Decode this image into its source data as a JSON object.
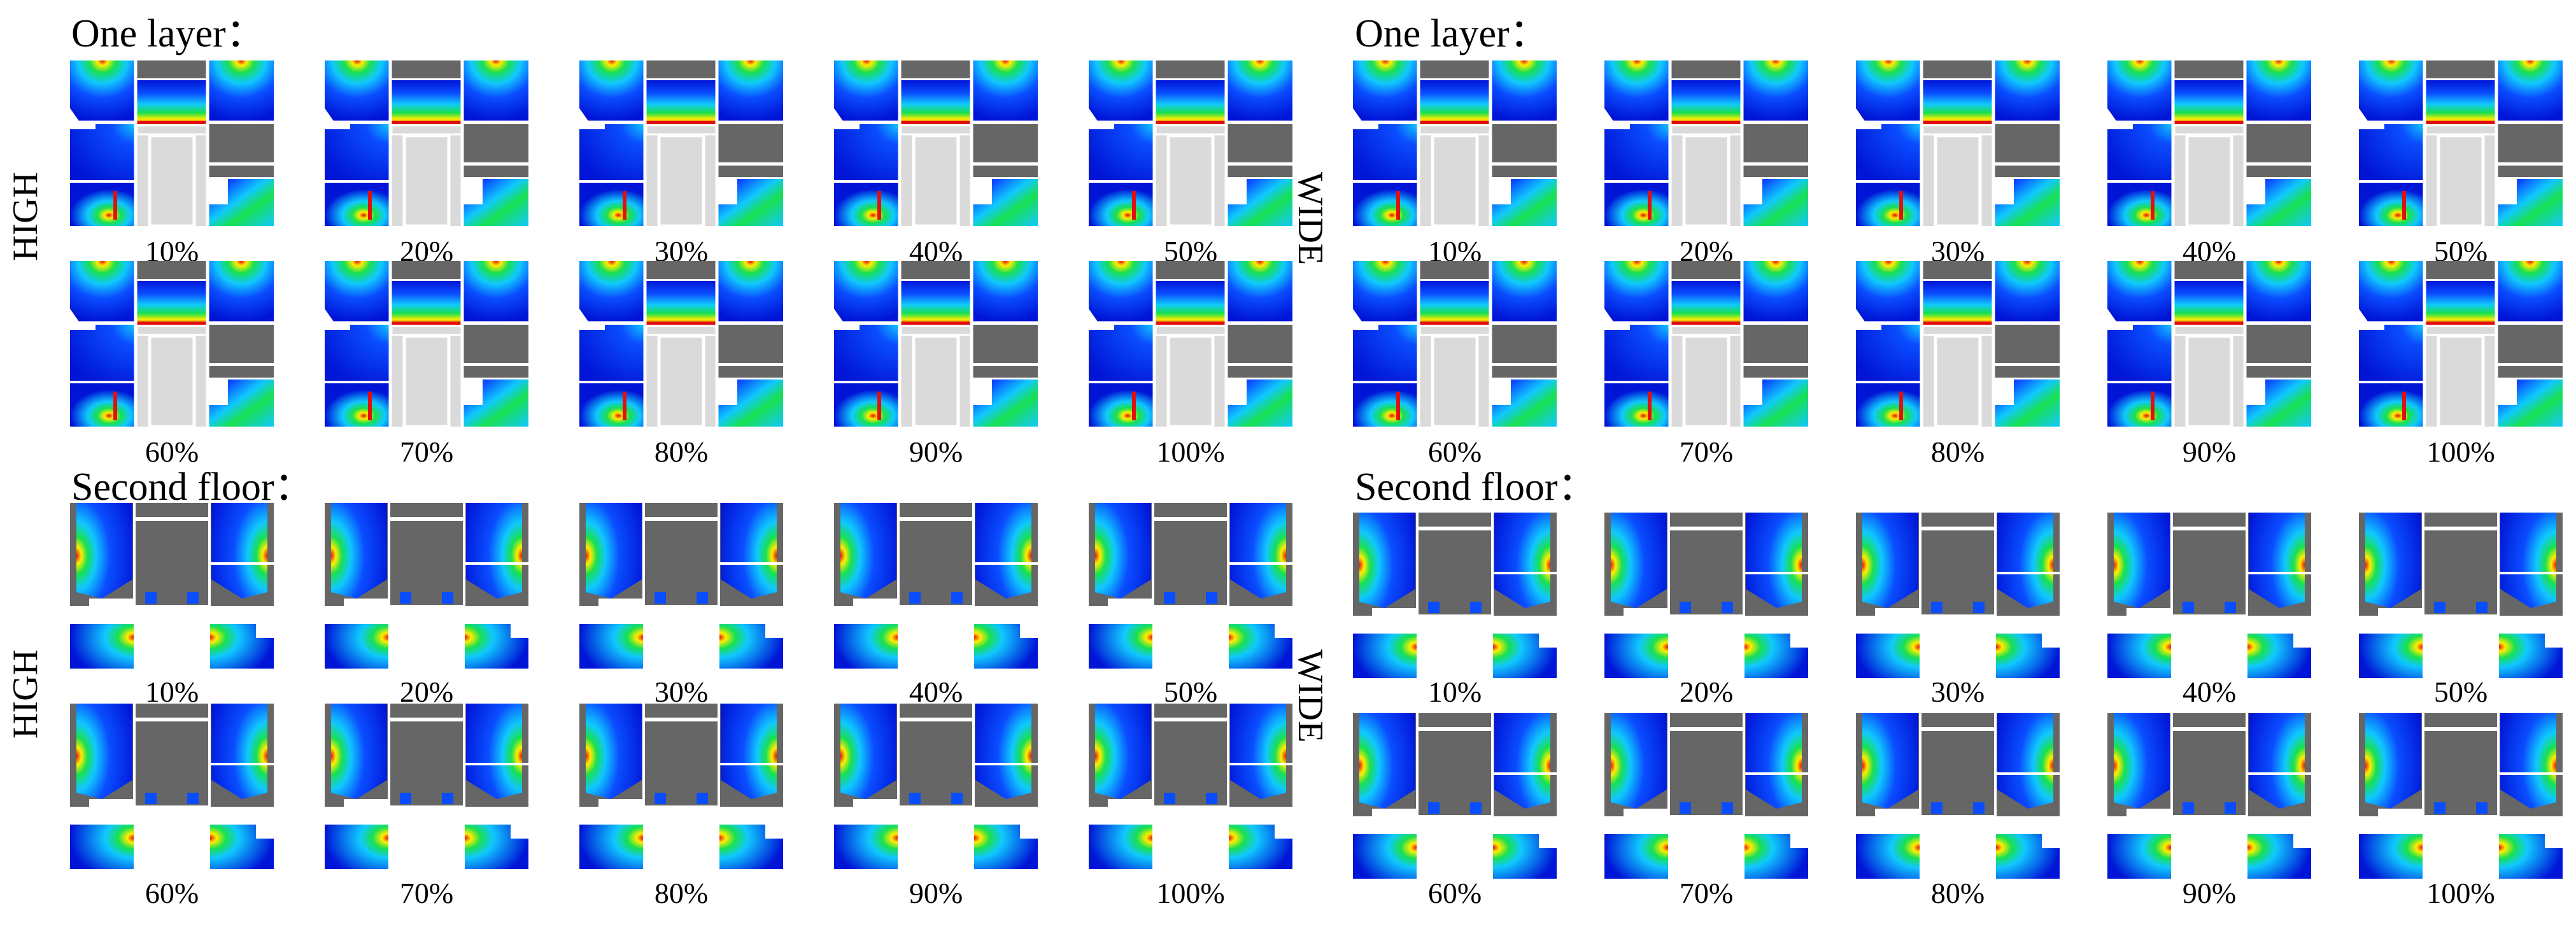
{
  "colors": {
    "deep_blue": "#0015d6",
    "blue": "#0a4dff",
    "cyan": "#10c8ff",
    "green": "#18e050",
    "yellow": "#ffee00",
    "red": "#e01010",
    "wall_grey": "#666666",
    "light_grey": "#dadada",
    "divider": "#ffffff"
  },
  "panels": [
    {
      "title": "One layer：",
      "side_label": "HIGH",
      "layout": "one-layer",
      "rows": [
        [
          "10%",
          "20%",
          "30%",
          "40%",
          "50%"
        ],
        [
          "60%",
          "70%",
          "80%",
          "90%",
          "100%"
        ]
      ]
    },
    {
      "title": "One layer：",
      "side_label": "WIDE",
      "layout": "one-layer",
      "rows": [
        [
          "10%",
          "20%",
          "30%",
          "40%",
          "50%"
        ],
        [
          "60%",
          "70%",
          "80%",
          "90%",
          "100%"
        ]
      ]
    },
    {
      "title": "Second floor：",
      "side_label": "HIGH",
      "layout": "second-floor",
      "rows": [
        [
          "10%",
          "20%",
          "30%",
          "40%",
          "50%"
        ],
        [
          "60%",
          "70%",
          "80%",
          "90%",
          "100%"
        ]
      ]
    },
    {
      "title": "Second floor：",
      "side_label": "WIDE",
      "layout": "second-floor",
      "rows": [
        [
          "10%",
          "20%",
          "30%",
          "40%",
          "50%"
        ],
        [
          "60%",
          "70%",
          "80%",
          "90%",
          "100%"
        ]
      ]
    }
  ]
}
